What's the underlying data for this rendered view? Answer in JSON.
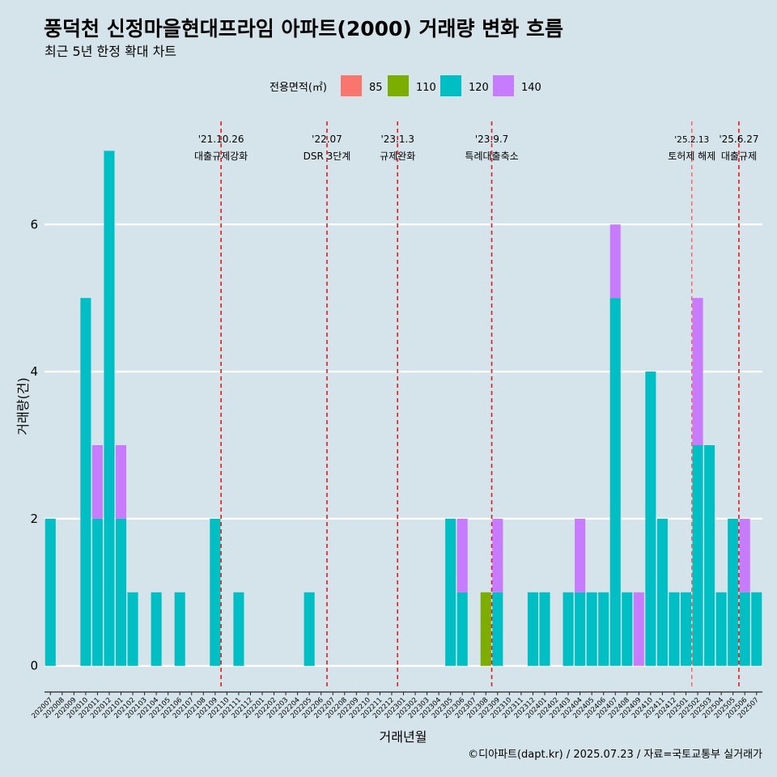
{
  "header": {
    "title": "풍덕천 신정마을현대프라임 아파트(2000) 거래량 변화 흐름",
    "subtitle": "최근 5년 한정 확대 차트"
  },
  "legend": {
    "title": "전용면적(㎡)",
    "items": [
      {
        "label": "85",
        "color": "#f8766d"
      },
      {
        "label": "110",
        "color": "#7cae00"
      },
      {
        "label": "120",
        "color": "#00bfc4"
      },
      {
        "label": "140",
        "color": "#c77cff"
      }
    ]
  },
  "caption": "©디아파트(dapt.kr) / 2025.07.23 / 자료=국토교통부 실거래가",
  "chart_data": {
    "type": "bar",
    "xlabel": "거래년월",
    "ylabel": "거래량(건)",
    "ylim": [
      -0.3,
      7.4
    ],
    "yticks": [
      0,
      2,
      4,
      6
    ],
    "grid": true,
    "legend_position": "top",
    "categories": [
      "202007",
      "202008",
      "202009",
      "202010",
      "202011",
      "202012",
      "202101",
      "202102",
      "202103",
      "202104",
      "202105",
      "202106",
      "202107",
      "202108",
      "202109",
      "202110",
      "202111",
      "202112",
      "202201",
      "202202",
      "202203",
      "202204",
      "202205",
      "202206",
      "202207",
      "202208",
      "202209",
      "202210",
      "202211",
      "202212",
      "202301",
      "202302",
      "202303",
      "202304",
      "202305",
      "202306",
      "202307",
      "202308",
      "202309",
      "202310",
      "202311",
      "202312",
      "202401",
      "202402",
      "202403",
      "202404",
      "202405",
      "202406",
      "202407",
      "202408",
      "202409",
      "202410",
      "202411",
      "202412",
      "202501",
      "202502",
      "202503",
      "202504",
      "202505",
      "202506",
      "202507"
    ],
    "series": [
      {
        "name": "85",
        "color": "#f8766d",
        "values": [
          0,
          0,
          0,
          0,
          0,
          0,
          0,
          0,
          0,
          0,
          0,
          0,
          0,
          0,
          0,
          0,
          0,
          0,
          0,
          0,
          0,
          0,
          0,
          0,
          0,
          0,
          0,
          0,
          0,
          0,
          0,
          0,
          0,
          0,
          0,
          0,
          0,
          0,
          0,
          0,
          0,
          0,
          0,
          0,
          0,
          0,
          0,
          0,
          0,
          0,
          0,
          0,
          0,
          0,
          0,
          0,
          0,
          0,
          0,
          0,
          0
        ]
      },
      {
        "name": "110",
        "color": "#7cae00",
        "values": [
          0,
          0,
          0,
          0,
          0,
          0,
          0,
          0,
          0,
          0,
          0,
          0,
          0,
          0,
          0,
          0,
          0,
          0,
          0,
          0,
          0,
          0,
          0,
          0,
          0,
          0,
          0,
          0,
          0,
          0,
          0,
          0,
          0,
          0,
          0,
          0,
          0,
          1,
          0,
          0,
          0,
          0,
          0,
          0,
          0,
          0,
          0,
          0,
          0,
          0,
          0,
          0,
          0,
          0,
          0,
          0,
          0,
          0,
          0,
          0,
          0
        ]
      },
      {
        "name": "120",
        "color": "#00bfc4",
        "values": [
          2,
          0,
          0,
          5,
          2,
          7,
          2,
          1,
          0,
          1,
          0,
          1,
          0,
          0,
          2,
          0,
          1,
          0,
          0,
          0,
          0,
          0,
          1,
          0,
          0,
          0,
          0,
          0,
          0,
          0,
          0,
          0,
          0,
          0,
          2,
          1,
          0,
          0,
          1,
          0,
          0,
          1,
          1,
          0,
          1,
          1,
          1,
          1,
          5,
          1,
          0,
          4,
          2,
          1,
          1,
          3,
          3,
          1,
          2,
          1,
          1
        ]
      },
      {
        "name": "140",
        "color": "#c77cff",
        "values": [
          0,
          0,
          0,
          0,
          1,
          0,
          1,
          0,
          0,
          0,
          0,
          0,
          0,
          0,
          0,
          0,
          0,
          0,
          0,
          0,
          0,
          0,
          0,
          0,
          0,
          0,
          0,
          0,
          0,
          0,
          0,
          0,
          0,
          0,
          0,
          1,
          0,
          0,
          1,
          0,
          0,
          0,
          0,
          0,
          0,
          1,
          0,
          0,
          1,
          0,
          1,
          0,
          0,
          0,
          0,
          2,
          0,
          0,
          0,
          1,
          0
        ]
      }
    ],
    "annotations": [
      {
        "date": "202110",
        "date_label": "'21.10.26",
        "text": "대출규제강화",
        "style": "dashed"
      },
      {
        "date": "202207",
        "date_label": "'22.07",
        "text": "DSR 3단계",
        "style": "dashed"
      },
      {
        "date": "202301",
        "date_label": "'23.1.3",
        "text": "규제완화",
        "style": "dashed"
      },
      {
        "date": "202309",
        "date_label": "'23.9.7",
        "text": "특례대출축소",
        "style": "dashed"
      },
      {
        "date": "202502",
        "date_label": "'25.2.13",
        "text": "토허제 해제",
        "style": "dashed-thin"
      },
      {
        "date": "202506",
        "date_label": "'25.6.27",
        "text": "대출규제",
        "style": "dashed"
      }
    ]
  }
}
